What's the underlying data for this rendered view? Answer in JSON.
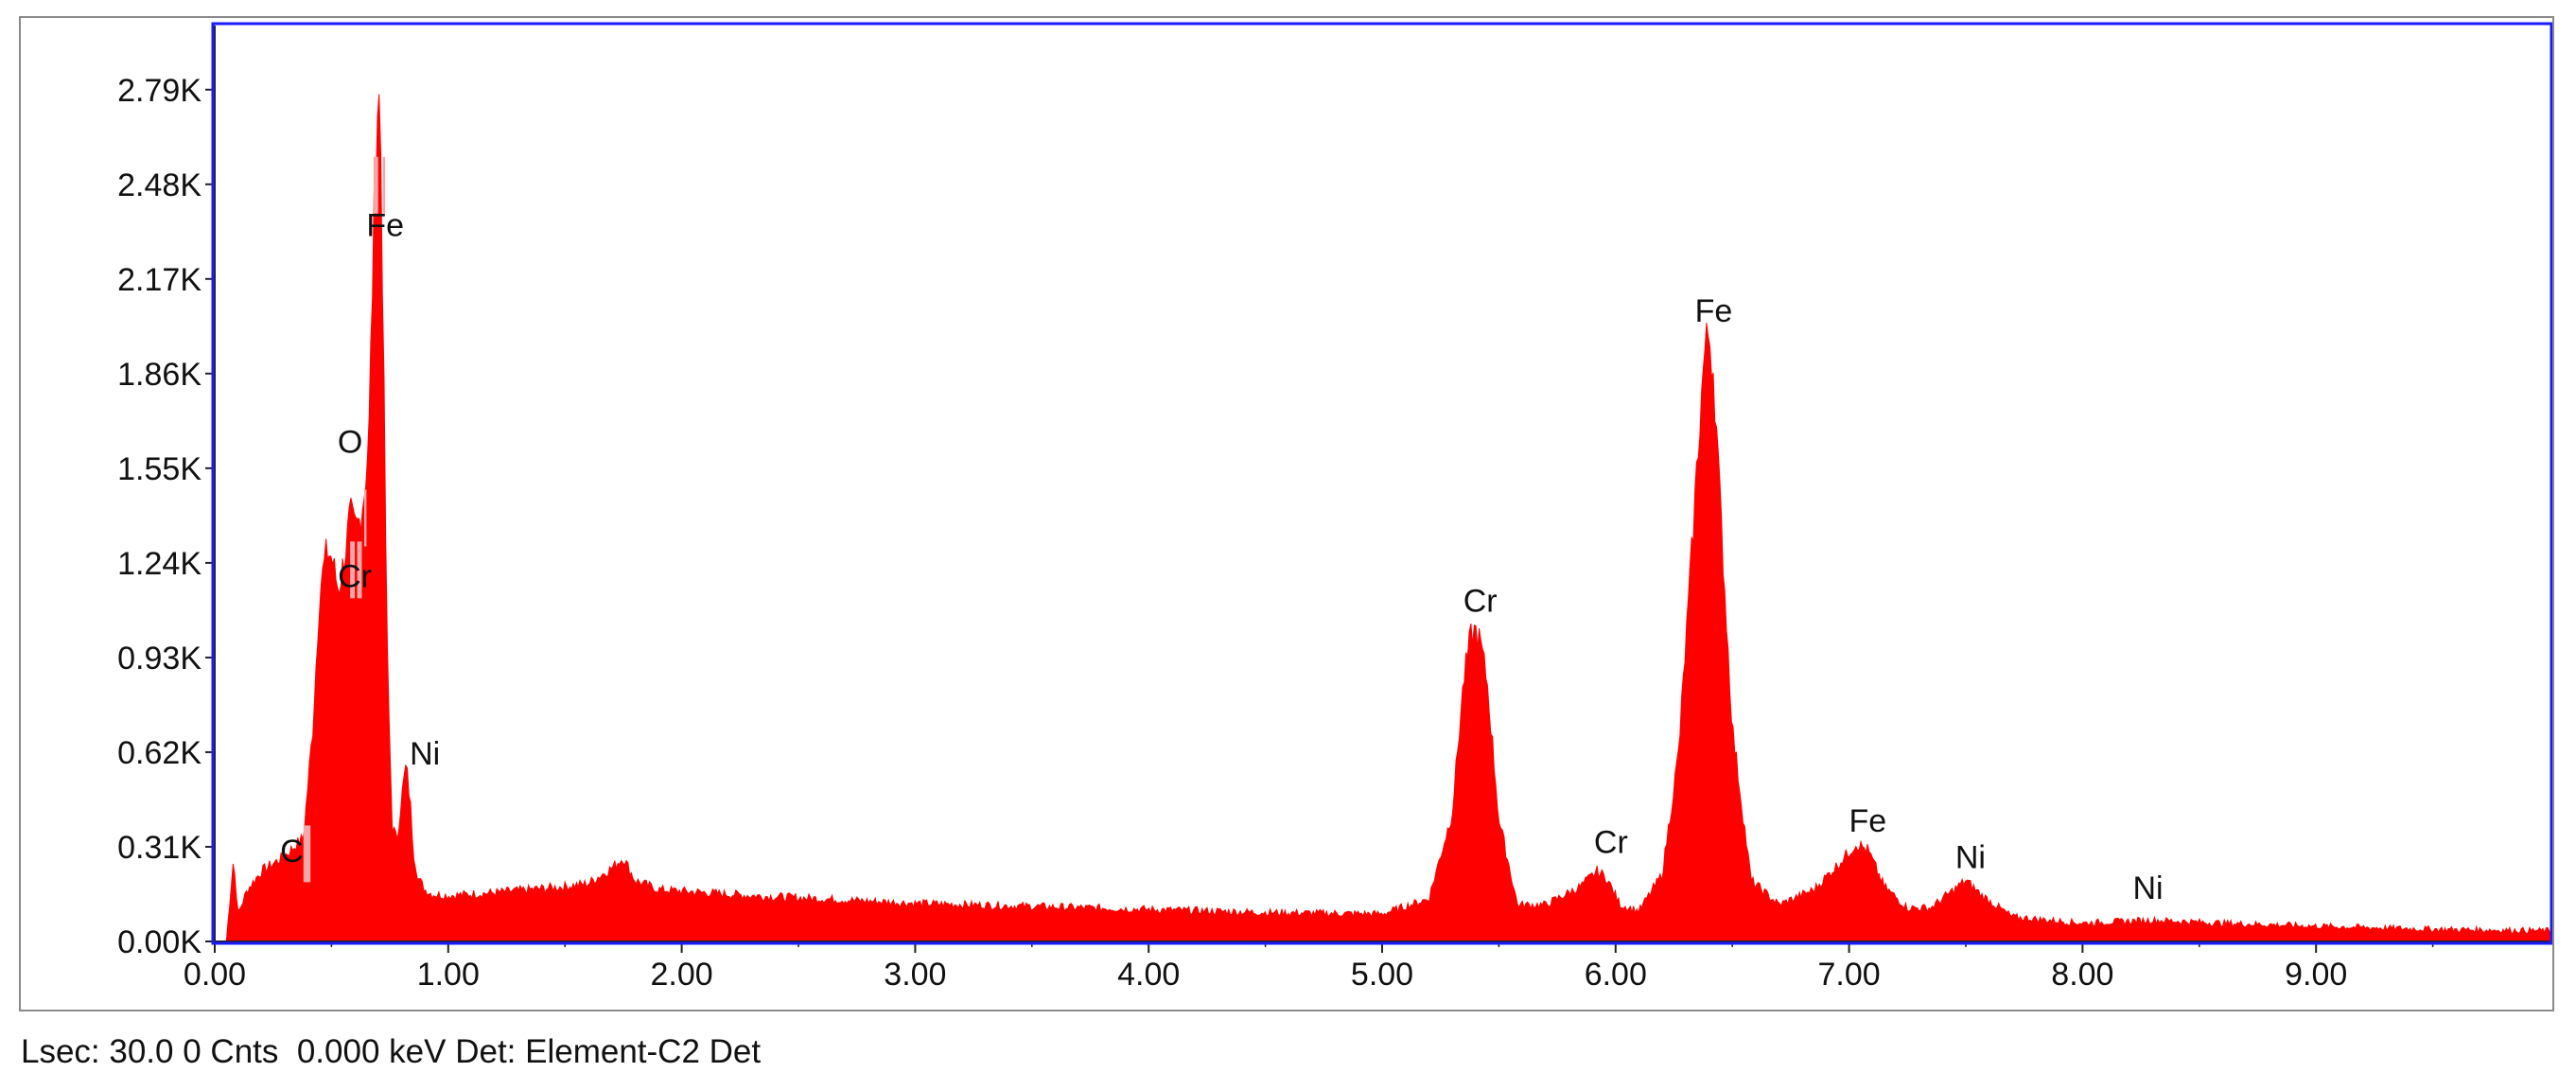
{
  "chart_data": {
    "type": "area",
    "title": "",
    "xlabel": "",
    "ylabel": "",
    "xlim": [
      0,
      10
    ],
    "ylim": [
      0,
      3000
    ],
    "x_ticks": [
      0,
      1,
      2,
      3,
      4,
      5,
      6,
      7,
      8,
      9
    ],
    "x_tick_labels": [
      "0.00",
      "1.00",
      "2.00",
      "3.00",
      "4.00",
      "5.00",
      "6.00",
      "7.00",
      "8.00",
      "9.00"
    ],
    "y_ticks": [
      0,
      310,
      620,
      930,
      1240,
      1550,
      1860,
      2170,
      2480,
      2790
    ],
    "y_tick_labels": [
      "0.00K",
      "0.31K",
      "0.62K",
      "0.93K",
      "1.24K",
      "1.55K",
      "1.86K",
      "2.17K",
      "2.48K",
      "2.79K"
    ],
    "grid": false,
    "legend": "none",
    "series_color": "#ff0000",
    "highlight_color": "#f4a7a7",
    "frame_color": "#1a1aff",
    "spectrum": {
      "x": [
        0.05,
        0.08,
        0.1,
        0.14,
        0.2,
        0.3,
        0.38,
        0.42,
        0.45,
        0.48,
        0.5,
        0.53,
        0.56,
        0.58,
        0.6,
        0.62,
        0.64,
        0.66,
        0.68,
        0.69,
        0.7,
        0.71,
        0.72,
        0.73,
        0.74,
        0.76,
        0.78,
        0.8,
        0.82,
        0.84,
        0.85,
        0.87,
        0.9,
        0.93,
        1.0,
        1.2,
        1.5,
        1.6,
        1.7,
        1.75,
        1.8,
        1.9,
        2.0,
        2.3,
        2.6,
        3.0,
        3.5,
        4.0,
        4.5,
        5.0,
        5.2,
        5.3,
        5.35,
        5.38,
        5.4,
        5.42,
        5.45,
        5.5,
        5.58,
        5.7,
        5.85,
        5.92,
        5.96,
        6.02,
        6.1,
        6.2,
        6.27,
        6.32,
        6.36,
        6.38,
        6.4,
        6.42,
        6.45,
        6.5,
        6.58,
        6.7,
        6.85,
        6.95,
        7.03,
        7.08,
        7.15,
        7.25,
        7.35,
        7.45,
        7.5,
        7.57,
        7.7,
        8.0,
        8.3,
        8.6,
        9.0,
        9.5,
        10.0
      ],
      "y": [
        0,
        270,
        90,
        170,
        230,
        280,
        340,
        700,
        1150,
        1280,
        1260,
        1150,
        1280,
        1400,
        1350,
        1380,
        1470,
        1650,
        2300,
        2560,
        2820,
        2650,
        2100,
        1450,
        900,
        380,
        330,
        470,
        580,
        430,
        300,
        210,
        170,
        155,
        150,
        160,
        180,
        190,
        240,
        275,
        200,
        170,
        165,
        150,
        140,
        125,
        115,
        105,
        95,
        90,
        140,
        420,
        860,
        1000,
        1020,
        980,
        850,
        400,
        120,
        120,
        180,
        230,
        210,
        120,
        100,
        220,
        620,
        1200,
        1700,
        1920,
        2000,
        1860,
        1400,
        700,
        200,
        120,
        170,
        250,
        320,
        300,
        180,
        110,
        110,
        170,
        200,
        150,
        80,
        60,
        70,
        60,
        50,
        40,
        35
      ]
    },
    "annotations": [
      {
        "text": "C",
        "x": 0.33,
        "y": 260
      },
      {
        "text": "O",
        "x": 0.58,
        "y": 1600
      },
      {
        "text": "Cr",
        "x": 0.6,
        "y": 1160
      },
      {
        "text": "Fe",
        "x": 0.73,
        "y": 2310
      },
      {
        "text": "Ni",
        "x": 0.9,
        "y": 580
      },
      {
        "text": "Cr",
        "x": 5.42,
        "y": 1080
      },
      {
        "text": "Cr",
        "x": 5.98,
        "y": 290
      },
      {
        "text": "Fe",
        "x": 6.42,
        "y": 2030
      },
      {
        "text": "Fe",
        "x": 7.08,
        "y": 360
      },
      {
        "text": "Ni",
        "x": 7.52,
        "y": 240
      },
      {
        "text": "Ni",
        "x": 8.28,
        "y": 140
      }
    ]
  },
  "status_bar": {
    "lsec": "Lsec: 30.0",
    "counts": "0 Cnts",
    "energy": "0.000 keV",
    "detector": "Det: Element-C2 Det"
  }
}
